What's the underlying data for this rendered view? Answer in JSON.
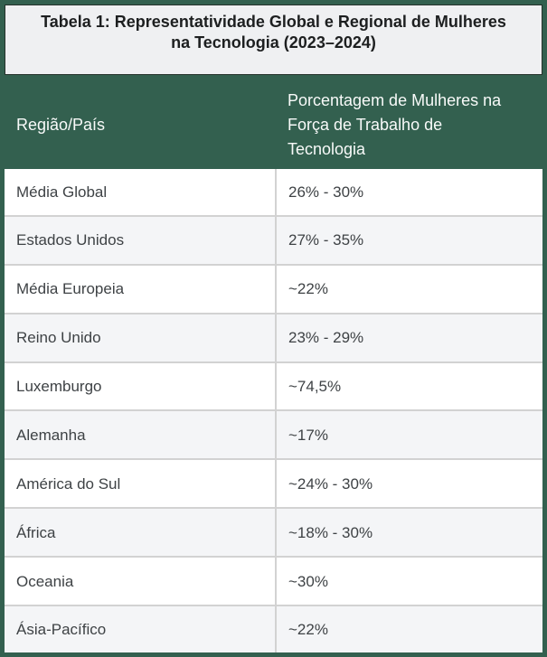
{
  "chart_data": {
    "type": "table",
    "title": "Tabela 1: Representatividade Global e Regional de Mulheres na Tecnologia (2023–2024)",
    "title_lines": [
      "Tabela 1: Representatividade Global e Regional de Mulheres",
      "na Tecnologia (2023–2024)"
    ],
    "columns": [
      "Região/País",
      "Porcentagem de Mulheres na Força de Trabalho de Tecnologia"
    ],
    "rows": [
      [
        "Média Global",
        "26% - 30%"
      ],
      [
        "Estados Unidos",
        "27% - 35%"
      ],
      [
        "Média Europeia",
        "~22%"
      ],
      [
        "Reino Unido",
        "23% - 29%"
      ],
      [
        "Luxemburgo",
        "~74,5%"
      ],
      [
        "Alemanha",
        "~17%"
      ],
      [
        "América do Sul",
        "~24% - 30%"
      ],
      [
        "África",
        "~18% - 30%"
      ],
      [
        "Oceania",
        "~30%"
      ],
      [
        "Ásia-Pacífico",
        "~22%"
      ]
    ],
    "layout": {
      "legend": "none",
      "grid": "row-dividers",
      "header_position": "top",
      "row_striping": "alternate"
    },
    "colors": {
      "frame_bg": "#33604F",
      "header_bg": "#33604F",
      "header_text": "#FFFFFF",
      "title_bg": "#EFF0F2",
      "title_text": "#1D1F20",
      "row_bg": "#FFFFFF",
      "row_alt_bg": "#F4F5F7",
      "divider": "#D2D2D2",
      "body_text": "#3E4245"
    }
  }
}
